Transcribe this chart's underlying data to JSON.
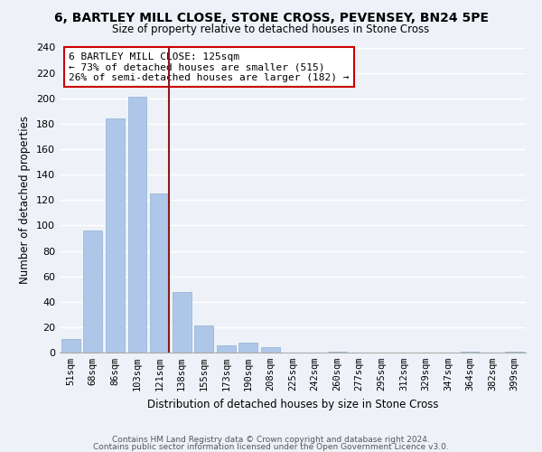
{
  "title": "6, BARTLEY MILL CLOSE, STONE CROSS, PEVENSEY, BN24 5PE",
  "subtitle": "Size of property relative to detached houses in Stone Cross",
  "bar_labels": [
    "51sqm",
    "68sqm",
    "86sqm",
    "103sqm",
    "121sqm",
    "138sqm",
    "155sqm",
    "173sqm",
    "190sqm",
    "208sqm",
    "225sqm",
    "242sqm",
    "260sqm",
    "277sqm",
    "295sqm",
    "312sqm",
    "329sqm",
    "347sqm",
    "364sqm",
    "382sqm",
    "399sqm"
  ],
  "bar_values": [
    11,
    96,
    184,
    201,
    125,
    48,
    21,
    6,
    8,
    4,
    0,
    0,
    1,
    0,
    0,
    0,
    0,
    0,
    1,
    0,
    1
  ],
  "bar_color": "#aec6e8",
  "bar_edge_color": "#9ab8d8",
  "ylabel": "Number of detached properties",
  "xlabel": "Distribution of detached houses by size in Stone Cross",
  "ylim": [
    0,
    240
  ],
  "yticks": [
    0,
    20,
    40,
    60,
    80,
    100,
    120,
    140,
    160,
    180,
    200,
    220,
    240
  ],
  "vline_color": "#8b1a1a",
  "annotation_title": "6 BARTLEY MILL CLOSE: 125sqm",
  "annotation_line1": "← 73% of detached houses are smaller (515)",
  "annotation_line2": "26% of semi-detached houses are larger (182) →",
  "annotation_box_color": "#ffffff",
  "annotation_box_edge": "#cc0000",
  "footer1": "Contains HM Land Registry data © Crown copyright and database right 2024.",
  "footer2": "Contains public sector information licensed under the Open Government Licence v3.0.",
  "background_color": "#eef2f8",
  "grid_color": "#ffffff"
}
